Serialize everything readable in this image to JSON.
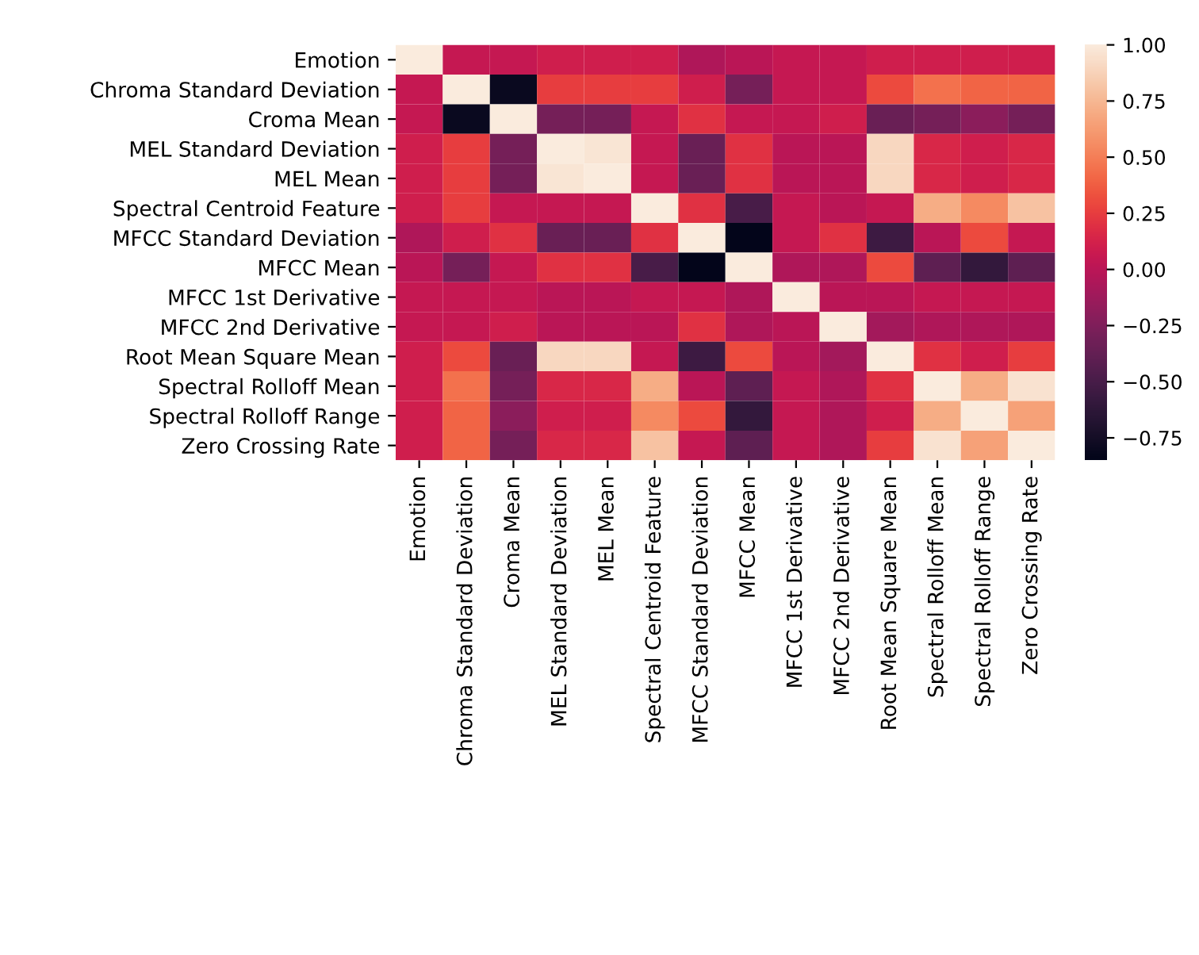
{
  "chart_data": {
    "type": "heatmap",
    "categories": [
      "Emotion",
      "Chroma Standard Deviation",
      "Croma Mean",
      "MEL Standard Deviation",
      "MEL Mean",
      "Spectral Centroid Feature",
      "MFCC Standard Deviation",
      "MFCC Mean",
      "MFCC 1st Derivative",
      "MFCC 2nd Derivative",
      "Root Mean Square Mean",
      "Spectral Rolloff Mean",
      "Spectral Rolloff Range",
      "Zero Crossing Rate"
    ],
    "y_categories": [
      "Emotion",
      "Chroma Standard Deviation",
      "Croma Mean",
      "MEL Standard Deviation",
      "MEL Mean",
      "Spectral Centroid Feature",
      "MFCC Standard Deviation",
      "MFCC Mean",
      "MFCC 1st Derivative",
      "MFCC 2nd Derivative",
      "Root Mean Square Mean",
      "Spectral Rolloff Mean",
      "Spectral Rolloff Range",
      "Zero Crossing Rate"
    ],
    "cells": [
      [
        1.0,
        0.05,
        0.05,
        0.1,
        0.1,
        0.1,
        -0.05,
        0.0,
        0.05,
        0.05,
        0.1,
        0.1,
        0.1,
        0.1
      ],
      [
        0.05,
        1.0,
        -0.8,
        0.25,
        0.25,
        0.25,
        0.1,
        -0.3,
        0.05,
        0.05,
        0.3,
        0.45,
        0.4,
        0.4
      ],
      [
        0.05,
        -0.8,
        1.0,
        -0.3,
        -0.3,
        0.05,
        0.2,
        0.05,
        0.05,
        0.1,
        -0.35,
        -0.3,
        -0.2,
        -0.3
      ],
      [
        0.1,
        0.25,
        -0.3,
        1.0,
        0.97,
        0.05,
        -0.35,
        0.2,
        0.0,
        0.0,
        0.9,
        0.15,
        0.1,
        0.15
      ],
      [
        0.1,
        0.25,
        -0.3,
        0.97,
        1.0,
        0.05,
        -0.35,
        0.2,
        0.0,
        0.0,
        0.9,
        0.15,
        0.1,
        0.15
      ],
      [
        0.1,
        0.25,
        0.05,
        0.05,
        0.05,
        1.0,
        0.2,
        -0.5,
        0.05,
        0.0,
        0.05,
        0.7,
        0.55,
        0.8
      ],
      [
        -0.05,
        0.1,
        0.2,
        -0.35,
        -0.35,
        0.2,
        1.0,
        -0.85,
        0.05,
        0.2,
        -0.55,
        0.0,
        0.3,
        0.05
      ],
      [
        0.0,
        -0.3,
        0.05,
        0.2,
        0.2,
        -0.5,
        -0.85,
        1.0,
        -0.05,
        -0.05,
        0.3,
        -0.4,
        -0.6,
        -0.4
      ],
      [
        0.05,
        0.05,
        0.05,
        0.0,
        0.0,
        0.05,
        0.05,
        -0.05,
        1.0,
        0.0,
        0.0,
        0.05,
        0.05,
        0.05
      ],
      [
        0.05,
        0.05,
        0.1,
        0.0,
        0.0,
        0.0,
        0.2,
        -0.05,
        0.0,
        1.0,
        -0.1,
        -0.05,
        -0.05,
        -0.05
      ],
      [
        0.1,
        0.3,
        -0.35,
        0.9,
        0.9,
        0.05,
        -0.55,
        0.3,
        0.0,
        -0.1,
        1.0,
        0.2,
        0.1,
        0.25
      ],
      [
        0.1,
        0.45,
        -0.3,
        0.15,
        0.15,
        0.7,
        0.0,
        -0.4,
        0.05,
        -0.05,
        0.2,
        1.0,
        0.7,
        0.95
      ],
      [
        0.1,
        0.4,
        -0.2,
        0.1,
        0.1,
        0.55,
        0.3,
        -0.6,
        0.05,
        -0.05,
        0.1,
        0.7,
        1.0,
        0.65
      ],
      [
        0.1,
        0.4,
        -0.3,
        0.15,
        0.15,
        0.8,
        0.05,
        -0.4,
        0.05,
        -0.05,
        0.25,
        0.95,
        0.65,
        1.0
      ]
    ],
    "clim": [
      -0.85,
      1.0
    ],
    "cticks": [
      {
        "value": -0.75,
        "label": "−0.75"
      },
      {
        "value": -0.5,
        "label": "−0.50"
      },
      {
        "value": -0.25,
        "label": "−0.25"
      },
      {
        "value": 0.0,
        "label": "0.00"
      },
      {
        "value": 0.25,
        "label": "0.25"
      },
      {
        "value": 0.5,
        "label": "0.50"
      },
      {
        "value": 0.75,
        "label": "0.75"
      },
      {
        "value": 1.0,
        "label": "1.00"
      }
    ]
  }
}
